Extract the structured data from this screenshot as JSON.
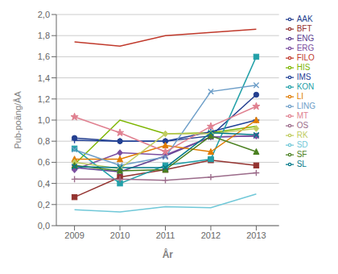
{
  "chart_data": {
    "type": "line",
    "x": [
      2009,
      2010,
      2011,
      2012,
      2013
    ],
    "xlabel": "År",
    "ylabel": "Pub-poäng/ÅA",
    "xlim": [
      2008.6,
      2013.5
    ],
    "xticks": [
      2009,
      2010,
      2011,
      2012,
      2013
    ],
    "ylim": [
      0.0,
      2.0
    ],
    "yticks": [
      {
        "value": 0.0,
        "label": "0,0"
      },
      {
        "value": 0.2,
        "label": "0,2"
      },
      {
        "value": 0.4,
        "label": "0,4"
      },
      {
        "value": 0.6,
        "label": "0,6"
      },
      {
        "value": 0.8,
        "label": "0,8"
      },
      {
        "value": 1.0,
        "label": "1,0"
      },
      {
        "value": 1.2,
        "label": "1,2"
      },
      {
        "value": 1.4,
        "label": "1,4"
      },
      {
        "value": 1.6,
        "label": "1,6"
      },
      {
        "value": 1.8,
        "label": "1,8"
      },
      {
        "value": 2.0,
        "label": "2,0"
      }
    ],
    "grid": true,
    "legend": "right",
    "series": [
      {
        "name": "AAK",
        "values": [
          0.83,
          0.8,
          0.8,
          0.85,
          1.24
        ],
        "color": "#243F8F",
        "marker": "circle"
      },
      {
        "name": "BFT",
        "values": [
          0.27,
          0.46,
          0.53,
          0.62,
          0.57
        ],
        "color": "#943330",
        "marker": "square"
      },
      {
        "name": "ENG",
        "values": [
          0.55,
          0.51,
          0.66,
          0.84,
          0.85
        ],
        "color": "#5C3D8F",
        "marker": "x"
      },
      {
        "name": "ERG",
        "values": [
          0.53,
          0.69,
          0.67,
          0.84,
          0.85
        ],
        "color": "#7B4EA0",
        "marker": "diamond"
      },
      {
        "name": "FILO",
        "values": [
          1.74,
          1.7,
          1.8,
          1.83,
          1.86
        ],
        "color": "#C0392B",
        "marker": null
      },
      {
        "name": "HIS",
        "values": [
          0.58,
          1.0,
          0.87,
          0.88,
          0.94
        ],
        "color": "#7DB500",
        "marker": null
      },
      {
        "name": "IMS",
        "values": [
          0.81,
          0.8,
          0.8,
          0.89,
          1.0
        ],
        "color": "#1F4096",
        "marker": "plus"
      },
      {
        "name": "KON",
        "values": [
          0.73,
          0.4,
          0.57,
          0.63,
          1.6
        ],
        "color": "#22A0A8",
        "marker": "square"
      },
      {
        "name": "LI",
        "values": [
          0.63,
          0.63,
          0.76,
          0.7,
          1.0
        ],
        "color": "#E07B00",
        "marker": "triangle"
      },
      {
        "name": "LING",
        "values": [
          0.72,
          0.57,
          0.65,
          1.27,
          1.33
        ],
        "color": "#6D9EC8",
        "marker": "x"
      },
      {
        "name": "MT",
        "values": [
          1.03,
          0.88,
          0.7,
          0.94,
          1.13
        ],
        "color": "#E08090",
        "marker": "star"
      },
      {
        "name": "OS",
        "values": [
          0.44,
          0.44,
          0.43,
          0.46,
          0.5
        ],
        "color": "#9B6B8A",
        "marker": "plus"
      },
      {
        "name": "RK",
        "values": [
          0.6,
          0.54,
          0.87,
          0.87,
          0.92
        ],
        "color": "#C0CC60",
        "marker": "diamond"
      },
      {
        "name": "SD",
        "values": [
          0.15,
          0.13,
          0.18,
          0.17,
          0.3
        ],
        "color": "#70C8D8",
        "marker": null
      },
      {
        "name": "SF",
        "values": [
          0.57,
          0.52,
          0.53,
          0.85,
          0.7
        ],
        "color": "#4A8020",
        "marker": "triangle"
      },
      {
        "name": "SL",
        "values": [
          0.56,
          0.55,
          0.55,
          0.88,
          0.86
        ],
        "color": "#007888",
        "marker": "x"
      }
    ]
  }
}
